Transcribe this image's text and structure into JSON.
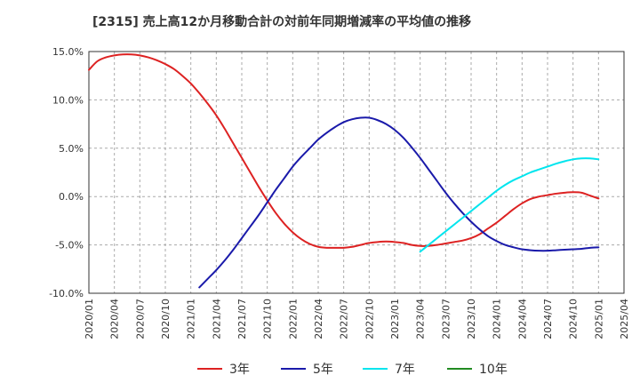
{
  "chart_data": {
    "type": "line",
    "title": "[2315]  売上高12か月移動合計の対前年同期増減率の平均値の推移",
    "xlabel": "",
    "ylabel": "",
    "ylim": [
      -10,
      15
    ],
    "xlim": [
      0,
      63
    ],
    "grid": true,
    "legend_position": "bottom",
    "y_ticks": [
      15,
      10,
      5,
      0,
      -5,
      -10
    ],
    "y_tick_labels": [
      "15.0%",
      "10.0%",
      "5.0%",
      "0.0%",
      "-5.0%",
      "-10.0%"
    ],
    "x_ticks": [
      0,
      3,
      6,
      9,
      12,
      15,
      18,
      21,
      24,
      27,
      30,
      33,
      36,
      39,
      42,
      45,
      48,
      51,
      54,
      57,
      60,
      63
    ],
    "x_tick_labels": [
      "2020/01",
      "2020/04",
      "2020/07",
      "2020/10",
      "2021/01",
      "2021/04",
      "2021/07",
      "2021/10",
      "2022/01",
      "2022/04",
      "2022/07",
      "2022/10",
      "2023/01",
      "2023/04",
      "2023/07",
      "2023/10",
      "2024/01",
      "2024/04",
      "2024/07",
      "2024/10",
      "2025/01",
      "2025/04"
    ],
    "series": [
      {
        "name": "3年",
        "color": "#dd2222",
        "x": [
          0,
          1,
          2,
          3,
          4,
          5,
          6,
          7,
          8,
          9,
          10,
          11,
          12,
          13,
          14,
          15,
          16,
          17,
          18,
          19,
          20,
          21,
          22,
          23,
          24,
          25,
          26,
          27,
          28,
          29,
          30,
          31,
          32,
          33,
          34,
          35,
          36,
          37,
          38,
          39,
          40,
          41,
          42,
          43,
          44,
          45,
          46,
          47,
          48,
          49,
          50,
          51,
          52,
          53,
          54,
          55,
          56,
          57,
          58,
          59,
          60
        ],
        "values": [
          13.1,
          14.0,
          14.4,
          14.6,
          14.7,
          14.7,
          14.6,
          14.4,
          14.1,
          13.7,
          13.2,
          12.5,
          11.7,
          10.7,
          9.6,
          8.4,
          7.0,
          5.5,
          4.0,
          2.5,
          1.0,
          -0.4,
          -1.7,
          -2.8,
          -3.7,
          -4.4,
          -4.9,
          -5.2,
          -5.3,
          -5.3,
          -5.3,
          -5.2,
          -5.0,
          -4.8,
          -4.7,
          -4.65,
          -4.7,
          -4.8,
          -5.0,
          -5.1,
          -5.1,
          -5.0,
          -4.85,
          -4.7,
          -4.55,
          -4.3,
          -3.9,
          -3.3,
          -2.7,
          -2.0,
          -1.3,
          -0.7,
          -0.25,
          0.0,
          0.15,
          0.3,
          0.4,
          0.45,
          0.4,
          0.1,
          -0.2
        ]
      },
      {
        "name": "5年",
        "color": "#1a1aaa",
        "x": [
          13,
          14,
          15,
          16,
          17,
          18,
          19,
          20,
          21,
          22,
          23,
          24,
          25,
          26,
          27,
          28,
          29,
          30,
          31,
          32,
          33,
          34,
          35,
          36,
          37,
          38,
          39,
          40,
          41,
          42,
          43,
          44,
          45,
          46,
          47,
          48,
          49,
          50,
          51,
          52,
          53,
          54,
          55,
          56,
          57,
          58,
          59,
          60
        ],
        "values": [
          -9.4,
          -8.5,
          -7.6,
          -6.6,
          -5.5,
          -4.3,
          -3.1,
          -1.9,
          -0.6,
          0.7,
          1.9,
          3.1,
          4.1,
          5.0,
          5.9,
          6.6,
          7.2,
          7.7,
          8.0,
          8.15,
          8.15,
          7.9,
          7.5,
          6.9,
          6.1,
          5.1,
          4.0,
          2.8,
          1.6,
          0.4,
          -0.7,
          -1.7,
          -2.6,
          -3.4,
          -4.1,
          -4.6,
          -5.0,
          -5.25,
          -5.45,
          -5.55,
          -5.6,
          -5.6,
          -5.55,
          -5.5,
          -5.45,
          -5.4,
          -5.3,
          -5.25
        ]
      },
      {
        "name": "7年",
        "color": "#00e5ee",
        "x": [
          39,
          40,
          41,
          42,
          43,
          44,
          45,
          46,
          47,
          48,
          49,
          50,
          51,
          52,
          53,
          54,
          55,
          56,
          57,
          58,
          59,
          60
        ],
        "values": [
          -5.7,
          -5.0,
          -4.3,
          -3.6,
          -2.9,
          -2.2,
          -1.5,
          -0.8,
          -0.1,
          0.6,
          1.2,
          1.7,
          2.1,
          2.5,
          2.8,
          3.1,
          3.4,
          3.65,
          3.85,
          3.95,
          3.95,
          3.85
        ]
      },
      {
        "name": "10年",
        "color": "#228b22",
        "x": [],
        "values": []
      }
    ]
  }
}
